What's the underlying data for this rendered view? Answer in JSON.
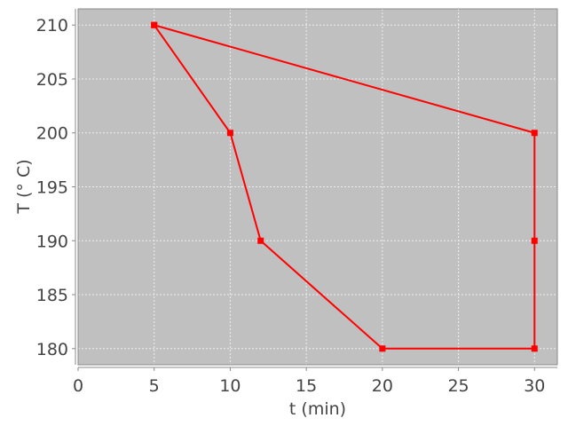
{
  "chart_data": {
    "type": "line",
    "xlabel": "t (min)",
    "ylabel": "T (° C)",
    "xlim": [
      0,
      31.5
    ],
    "ylim": [
      178.5,
      211.5
    ],
    "xticks": [
      0,
      5,
      10,
      15,
      20,
      25,
      30
    ],
    "yticks": [
      180,
      185,
      190,
      195,
      200,
      205,
      210
    ],
    "grid": true,
    "colors": {
      "plot_background": "#c0c0c0",
      "series": "#ff0000",
      "grid": "#eeeeee"
    },
    "series": [
      {
        "x": [
          5,
          10,
          12,
          20,
          30,
          30,
          30,
          5
        ],
        "y": [
          210,
          200,
          190,
          180,
          180,
          190,
          200,
          210
        ]
      }
    ]
  }
}
